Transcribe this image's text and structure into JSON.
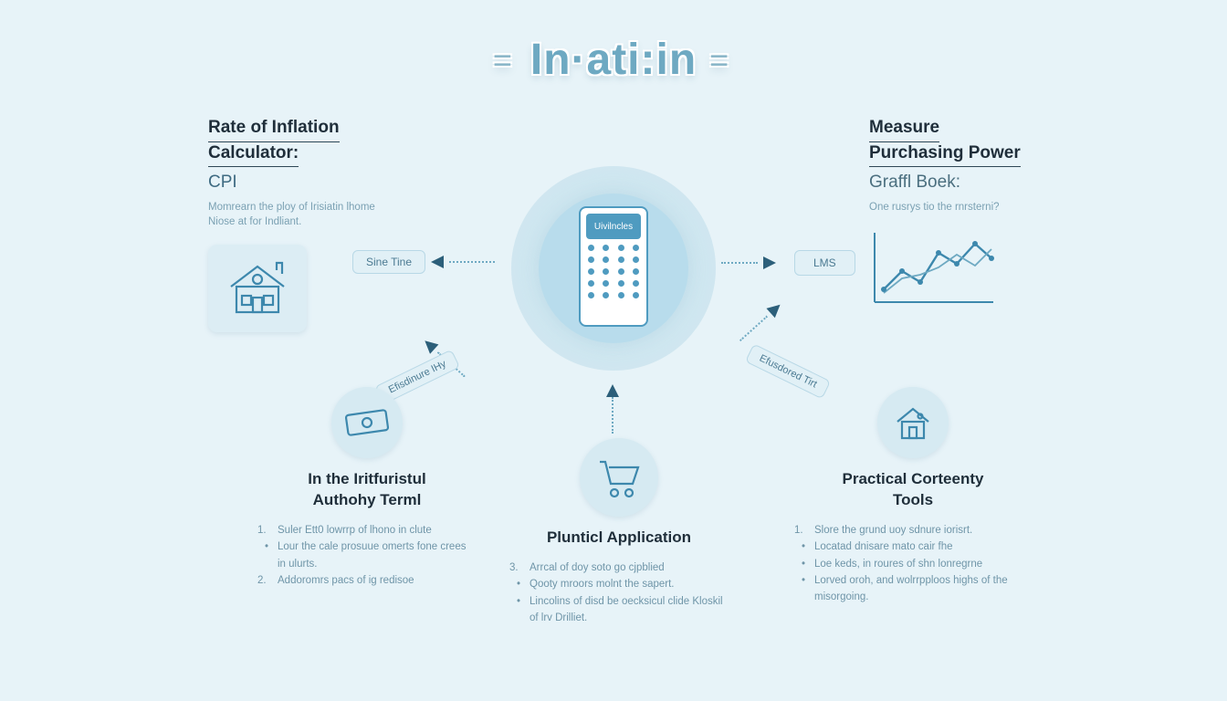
{
  "logo": {
    "left_bar": "=",
    "text": "In·ati:in",
    "right_bar": "="
  },
  "hub": {
    "screen_label": "Uivilncles"
  },
  "arrows": {
    "left_label": "Sine Tine",
    "right_label": "LMS",
    "diag_left_label": "Efisdinure IHy",
    "diag_right_label": "Efusdored Tirt"
  },
  "top_left": {
    "title_l1": "Rate of Inflation",
    "title_l2": "Calculator:",
    "subhead": "CPI",
    "desc": "Momrearn the ploy of Irisiatin lhome Niose at for Indliant."
  },
  "top_right": {
    "title_l1": "Measure",
    "title_l2": "Purchasing Power",
    "subhead": "Graffl Boek:",
    "desc": "One rusrys tio the rnrsterni?"
  },
  "bottom_left": {
    "title_l1": "In the Iritfuristul",
    "title_l2": "Authohy Terml",
    "items": [
      "Suler Ett0 lowrrp of lhono in clute",
      "Lour the cale prosuue omerts fone crees in ulurts.",
      "Addoromrs pacs of ig redisoe"
    ]
  },
  "bottom_center": {
    "title": "Plunticl Application",
    "items": [
      "Arrcal of doy soto go cjpblied",
      "Qooty mroors molnt the sapert.",
      "Lincolins of disd be oecksicul clide Kloskil of lrv Drilliet."
    ]
  },
  "bottom_right": {
    "title_l1": "Practical Corteenty",
    "title_l2": "Tools",
    "items": [
      "Slore the grund uoy sdnure iorisrt.",
      "Locatad dnisare mato cair fhe",
      "Loe keds, in roures of shn lonregrne",
      "Lorved oroh, and wolrrpploos highs of the misorgoing."
    ]
  },
  "chart": {
    "axis_color": "#3d88ad",
    "line_color": "#3d88ad",
    "points_x": [
      10,
      30,
      50,
      70,
      90,
      110,
      128
    ],
    "points_y": [
      68,
      48,
      60,
      28,
      40,
      18,
      34
    ],
    "points2_y": [
      72,
      56,
      52,
      44,
      30,
      42,
      24
    ]
  },
  "colors": {
    "bg": "#e7f3f8",
    "accent": "#4f9bc0",
    "accent_dark": "#2c5f7a",
    "text_dark": "#1f2e3a",
    "text_muted": "#6f95a8"
  }
}
